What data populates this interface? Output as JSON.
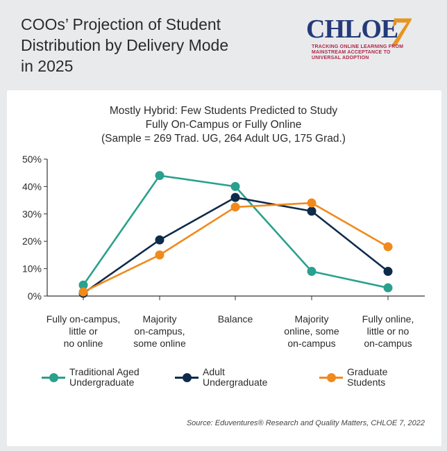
{
  "header": {
    "title_lines": [
      "COOs’ Projection of Student",
      "Distribution by Delivery Mode",
      "in 2025"
    ]
  },
  "logo": {
    "word": "CHLOE",
    "number": "7",
    "tagline_lines": [
      "TRACKING ONLINE LEARNING FROM",
      "MAINSTREAM ACCEPTANCE TO",
      "UNIVERSAL ADOPTION"
    ]
  },
  "chart_data": {
    "type": "line",
    "title_lines": [
      "Mostly Hybrid: Few Students Predicted to Study",
      "Fully On-Campus or Fully Online",
      "(Sample = 269 Trad. UG, 264 Adult UG, 175 Grad.)"
    ],
    "categories": [
      [
        "Fully on-campus,",
        "little or",
        "no online"
      ],
      [
        "Majority",
        "on-campus,",
        "some online"
      ],
      [
        "Balance"
      ],
      [
        "Majority",
        "online, some",
        "on-campus"
      ],
      [
        "Fully online,",
        "little or no",
        "on-campus"
      ]
    ],
    "yticks": [
      "0%",
      "10%",
      "20%",
      "30%",
      "40%",
      "50%"
    ],
    "ylim": [
      0,
      50
    ],
    "grid": false,
    "legend_position": "bottom",
    "series": [
      {
        "name_lines": [
          "Traditional Aged",
          "Undergraduate"
        ],
        "color": "#2aa08d",
        "values": [
          4,
          44,
          40,
          9,
          3
        ]
      },
      {
        "name_lines": [
          "Adult",
          "Undergraduate"
        ],
        "color": "#0f2b4a",
        "values": [
          1,
          20.5,
          36,
          31,
          9
        ]
      },
      {
        "name_lines": [
          "Graduate",
          "Students"
        ],
        "color": "#f08a1c",
        "values": [
          1.5,
          15,
          32.5,
          34,
          18
        ]
      }
    ]
  },
  "footer": {
    "source": "Source: Eduventures® Research and Quality Matters, CHLOE 7, 2022"
  }
}
